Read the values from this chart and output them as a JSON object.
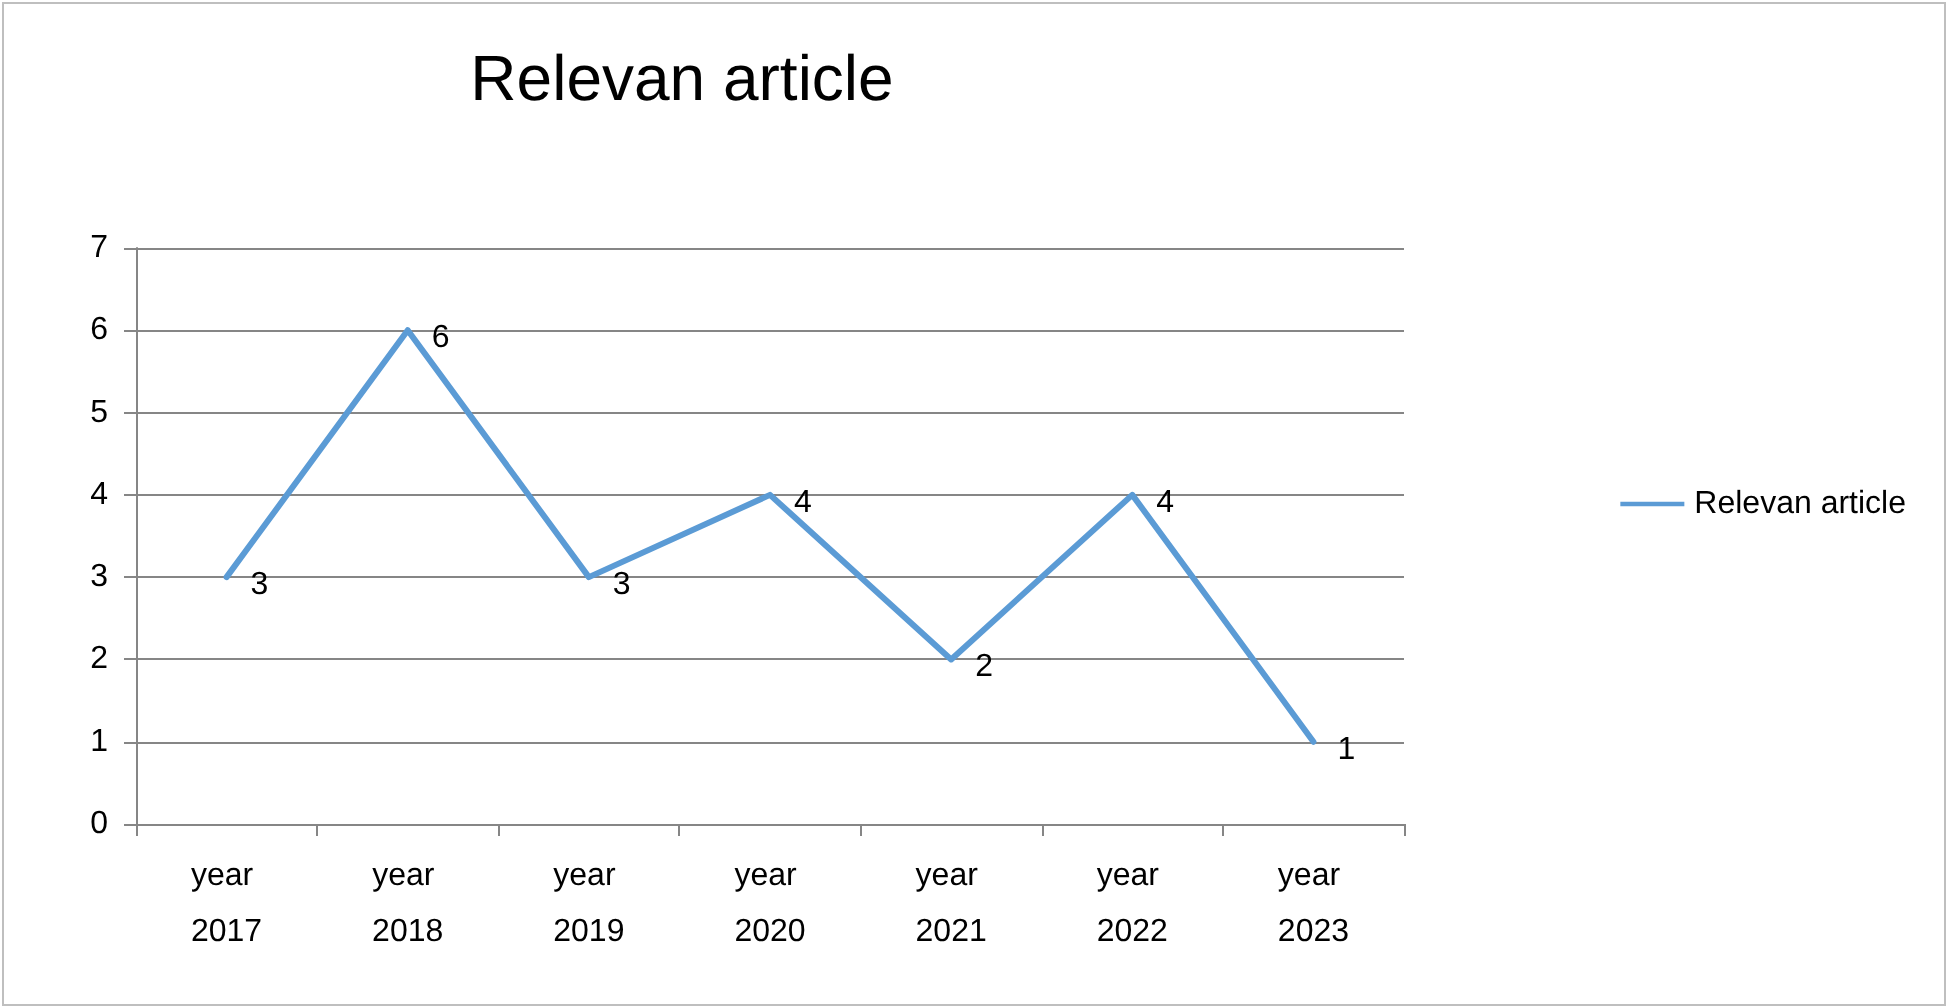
{
  "chart_data": {
    "type": "line",
    "title": "Relevan article",
    "categories": [
      "year 2017",
      "year 2018",
      "year 2019",
      "year 2020",
      "year 2021",
      "year 2022",
      "year 2023"
    ],
    "series": [
      {
        "name": "Relevan article",
        "color": "#5b9bd5",
        "values": [
          3,
          6,
          3,
          4,
          2,
          4,
          1
        ]
      }
    ],
    "ylim": [
      0,
      7
    ],
    "yticks": [
      0,
      1,
      2,
      3,
      4,
      5,
      6,
      7
    ],
    "grid": "y",
    "legend": "right",
    "data_labels": true,
    "marker": "none",
    "line_style": "solid"
  }
}
